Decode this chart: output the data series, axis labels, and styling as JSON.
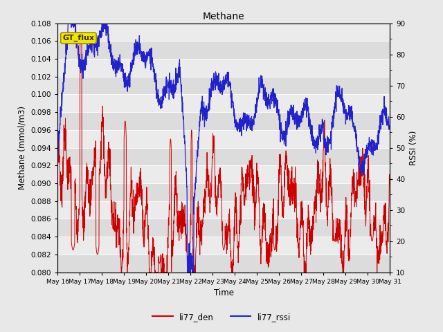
{
  "title": "Methane",
  "ylabel_left": "Methane (mmol/m3)",
  "ylabel_right": "RSSI (%)",
  "xlabel": "Time",
  "ylim_left": [
    0.08,
    0.108
  ],
  "ylim_right": [
    10,
    90
  ],
  "yticks_left": [
    0.08,
    0.082,
    0.084,
    0.086,
    0.088,
    0.09,
    0.092,
    0.094,
    0.096,
    0.098,
    0.1,
    0.102,
    0.104,
    0.106,
    0.108
  ],
  "yticks_right": [
    10,
    20,
    30,
    40,
    50,
    60,
    70,
    80,
    90
  ],
  "xtick_labels": [
    "May 16",
    "May 17",
    "May 18",
    "May 19",
    "May 20",
    "May 21",
    "May 22",
    "May 23",
    "May 24",
    "May 25",
    "May 26",
    "May 27",
    "May 28",
    "May 29",
    "May 30",
    "May 31"
  ],
  "color_red": "#cc0000",
  "color_blue": "#2222cc",
  "bg_color": "#e8e8e8",
  "band_dark": "#dcdcdc",
  "band_light": "#ebebeb",
  "label_red": "li77_den",
  "label_blue": "li77_rssi",
  "annotation": "GT_flux",
  "annotation_bg": "#e8e800",
  "annotation_border": "#aa8800",
  "n_points": 2000
}
